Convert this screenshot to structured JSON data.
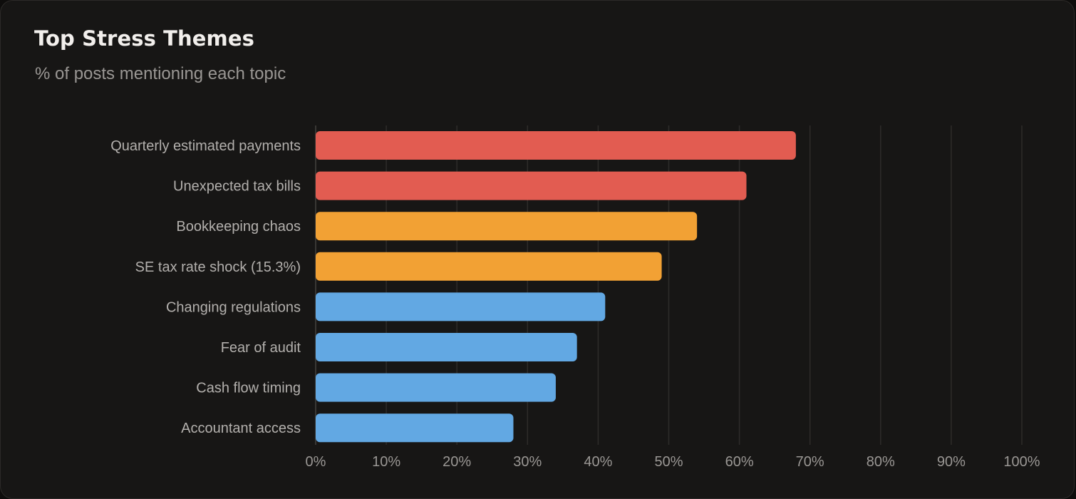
{
  "chart_data": {
    "type": "bar",
    "orientation": "horizontal",
    "title": "Top Stress Themes",
    "subtitle": "% of posts mentioning each topic",
    "xlabel": "",
    "ylabel": "",
    "categories": [
      "Quarterly estimated payments",
      "Unexpected tax bills",
      "Bookkeeping chaos",
      "SE tax rate shock (15.3%)",
      "Changing regulations",
      "Fear of audit",
      "Cash flow timing",
      "Accountant access"
    ],
    "values": [
      68,
      61,
      54,
      49,
      41,
      37,
      34,
      28
    ],
    "bar_colors": [
      "#e25c51",
      "#e25c51",
      "#f2a134",
      "#f2a134",
      "#62a8e3",
      "#62a8e3",
      "#62a8e3",
      "#62a8e3"
    ],
    "xlim": [
      0,
      100
    ],
    "x_ticks": [
      0,
      10,
      20,
      30,
      40,
      50,
      60,
      70,
      80,
      90,
      100
    ],
    "tick_suffix": "%",
    "grid": "vertical",
    "legend": "none"
  }
}
